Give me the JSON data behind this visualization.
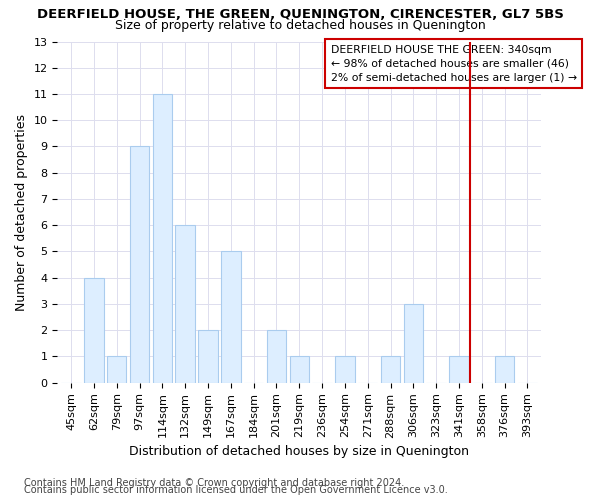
{
  "title": "DEERFIELD HOUSE, THE GREEN, QUENINGTON, CIRENCESTER, GL7 5BS",
  "subtitle": "Size of property relative to detached houses in Quenington",
  "xlabel": "Distribution of detached houses by size in Quenington",
  "ylabel": "Number of detached properties",
  "categories": [
    "45sqm",
    "62sqm",
    "79sqm",
    "97sqm",
    "114sqm",
    "132sqm",
    "149sqm",
    "167sqm",
    "184sqm",
    "201sqm",
    "219sqm",
    "236sqm",
    "254sqm",
    "271sqm",
    "288sqm",
    "306sqm",
    "323sqm",
    "341sqm",
    "358sqm",
    "376sqm",
    "393sqm"
  ],
  "values": [
    0,
    4,
    1,
    9,
    11,
    6,
    2,
    5,
    0,
    2,
    1,
    0,
    1,
    0,
    1,
    3,
    0,
    1,
    0,
    1,
    0
  ],
  "bar_color": "#ddeeff",
  "bar_edge_color": "#aaccee",
  "vline_index": 17,
  "vline_color": "#cc0000",
  "ylim": [
    0,
    13
  ],
  "yticks": [
    0,
    1,
    2,
    3,
    4,
    5,
    6,
    7,
    8,
    9,
    10,
    11,
    12,
    13
  ],
  "annotation_text": "DEERFIELD HOUSE THE GREEN: 340sqm\n← 98% of detached houses are smaller (46)\n2% of semi-detached houses are larger (1) →",
  "footer1": "Contains HM Land Registry data © Crown copyright and database right 2024.",
  "footer2": "Contains public sector information licensed under the Open Government Licence v3.0.",
  "background_color": "#ffffff",
  "grid_color": "#ddddee",
  "title_fontsize": 9.5,
  "subtitle_fontsize": 9,
  "axis_label_fontsize": 9,
  "tick_fontsize": 8,
  "footer_fontsize": 7
}
